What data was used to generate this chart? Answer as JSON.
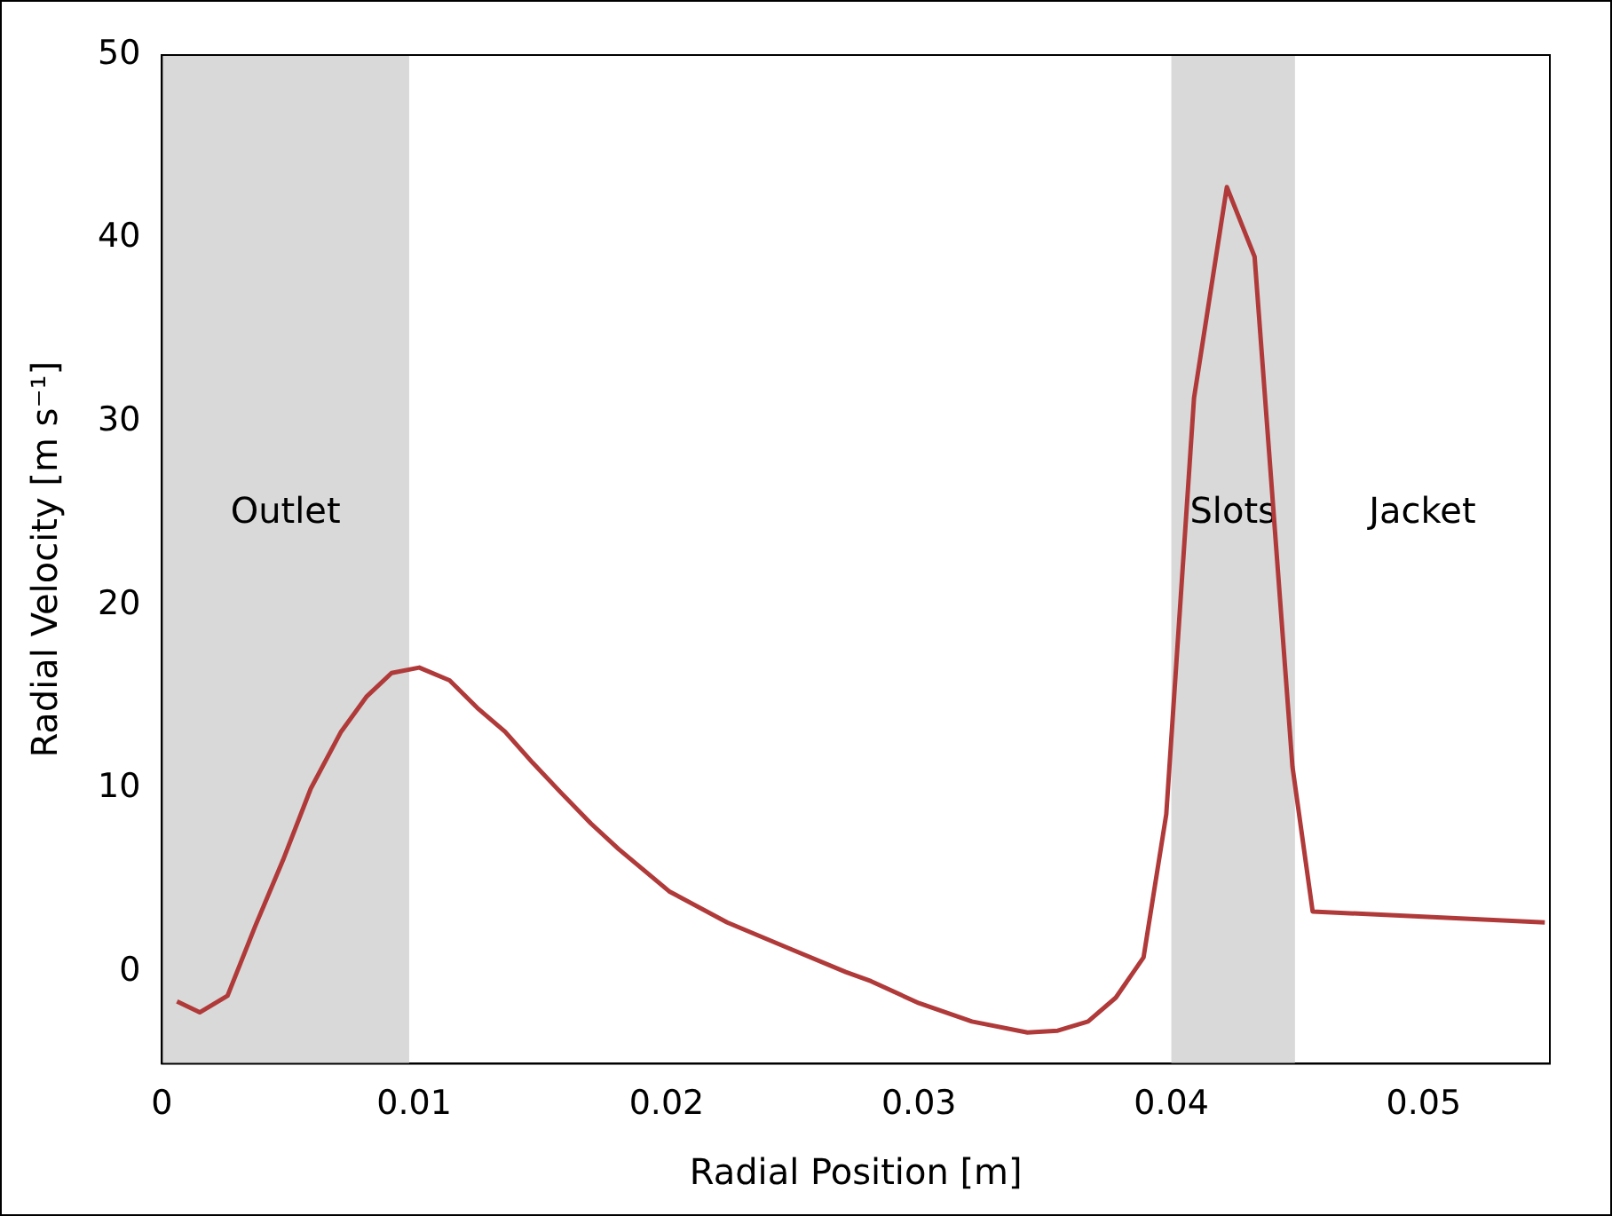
{
  "chart_data": {
    "type": "line",
    "xlabel": "Radial Position [m]",
    "ylabel": "Radial Velocity [m s⁻¹]",
    "xlim": [
      0,
      0.055
    ],
    "xticks": [
      0,
      0.01,
      0.02,
      0.03,
      0.04,
      0.05
    ],
    "ylim": [
      -5,
      50
    ],
    "yticks": [
      0,
      10,
      20,
      30,
      40,
      50
    ],
    "grid": false,
    "legend": false,
    "marker": "none",
    "line_style": "solid",
    "bands": [
      {
        "axis": "x",
        "from": 0,
        "to": 0.0098,
        "label": "Outlet",
        "color": "#d9d9d9"
      },
      {
        "axis": "x",
        "from": 0.04,
        "to": 0.0449,
        "label": "Slots",
        "color": "#d9d9d9"
      }
    ],
    "annotations": [
      "Jacket"
    ],
    "series": [
      {
        "color": "#b03a3a",
        "x": [
          0.0006,
          0.0015,
          0.0026,
          0.0037,
          0.0048,
          0.0059,
          0.0071,
          0.0081,
          0.0091,
          0.0102,
          0.0114,
          0.0125,
          0.0136,
          0.0147,
          0.0158,
          0.017,
          0.0181,
          0.0201,
          0.0224,
          0.025,
          0.0271,
          0.0281,
          0.03,
          0.0321,
          0.0343,
          0.0355,
          0.0367,
          0.0378,
          0.0389,
          0.0398,
          0.0409,
          0.0422,
          0.0433,
          0.0448,
          0.0456,
          0.0548
        ],
        "values": [
          -1.6,
          -2.2,
          -1.3,
          2.5,
          6.1,
          10,
          13.1,
          15,
          16.3,
          16.6,
          15.9,
          14.4,
          13.1,
          11.4,
          9.8,
          8.1,
          6.7,
          4.4,
          2.7,
          1.2,
          0,
          -0.5,
          -1.7,
          -2.7,
          -3.3,
          -3.2,
          -2.7,
          -1.4,
          0.8,
          8.6,
          31.3,
          42.8,
          39,
          11.2,
          3.3,
          2.7
        ]
      }
    ]
  }
}
